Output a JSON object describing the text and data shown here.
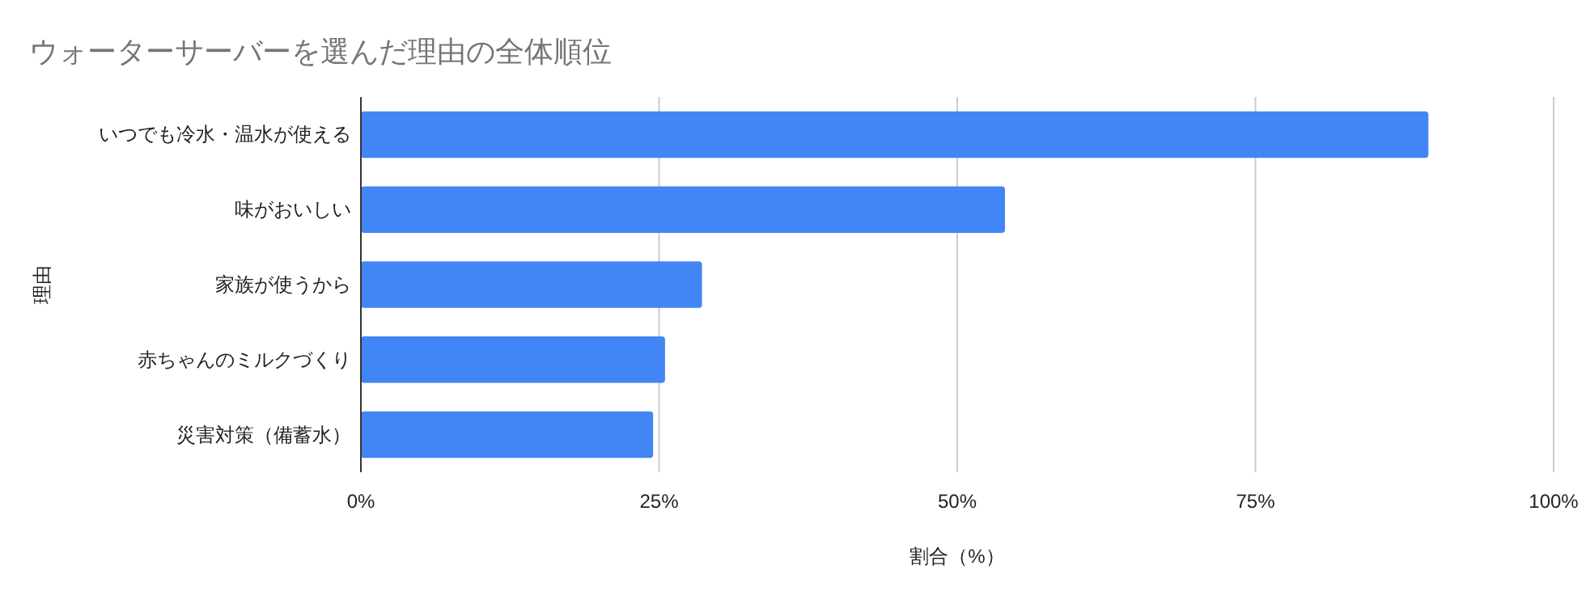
{
  "chart_data": {
    "type": "bar",
    "orientation": "horizontal",
    "title": "ウォーターサーバーを選んだ理由の全体順位",
    "xlabel": "割合（%）",
    "ylabel": "理由",
    "categories": [
      "いつでも冷水・温水が使える",
      "味がおいしい",
      "家族が使うから",
      "赤ちゃんのミルクづくり",
      "災害対策（備蓄水）"
    ],
    "series": [
      {
        "color": "#4285f4",
        "values": [
          89.5,
          54,
          28.6,
          25.5,
          24.5
        ]
      }
    ],
    "xlim": [
      0,
      100
    ],
    "xticks": [
      {
        "value": 0,
        "label": "0%"
      },
      {
        "value": 25,
        "label": "25%"
      },
      {
        "value": 50,
        "label": "50%"
      },
      {
        "value": 75,
        "label": "75%"
      },
      {
        "value": 100,
        "label": "100%"
      }
    ],
    "grid": "x"
  }
}
